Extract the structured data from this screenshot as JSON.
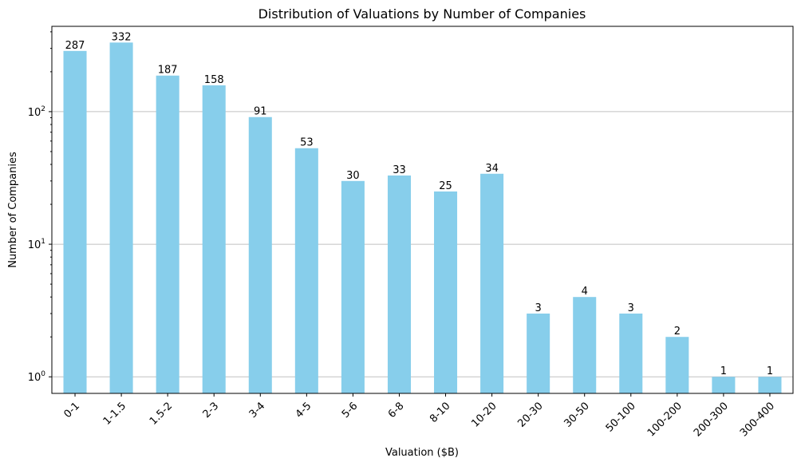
{
  "chart_data": {
    "type": "bar",
    "title": "Distribution of Valuations by Number of Companies",
    "xlabel": "Valuation ($B)",
    "ylabel": "Number of Companies",
    "yscale": "log",
    "ylim": [
      0.75,
      440
    ],
    "grid": "y-major",
    "bar_color": "#87CEEB",
    "categories": [
      "0-1",
      "1-1.5",
      "1.5-2",
      "2-3",
      "3-4",
      "4-5",
      "5-6",
      "6-8",
      "8-10",
      "10-20",
      "20-30",
      "30-50",
      "50-100",
      "100-200",
      "200-300",
      "300-400"
    ],
    "values": [
      287,
      332,
      187,
      158,
      91,
      53,
      30,
      33,
      25,
      34,
      3,
      4,
      3,
      2,
      1,
      1
    ],
    "y_ticks": [
      {
        "value": 1,
        "mantissa": "10",
        "exp": "0"
      },
      {
        "value": 10,
        "mantissa": "10",
        "exp": "1"
      },
      {
        "value": 100,
        "mantissa": "10",
        "exp": "2"
      }
    ]
  }
}
